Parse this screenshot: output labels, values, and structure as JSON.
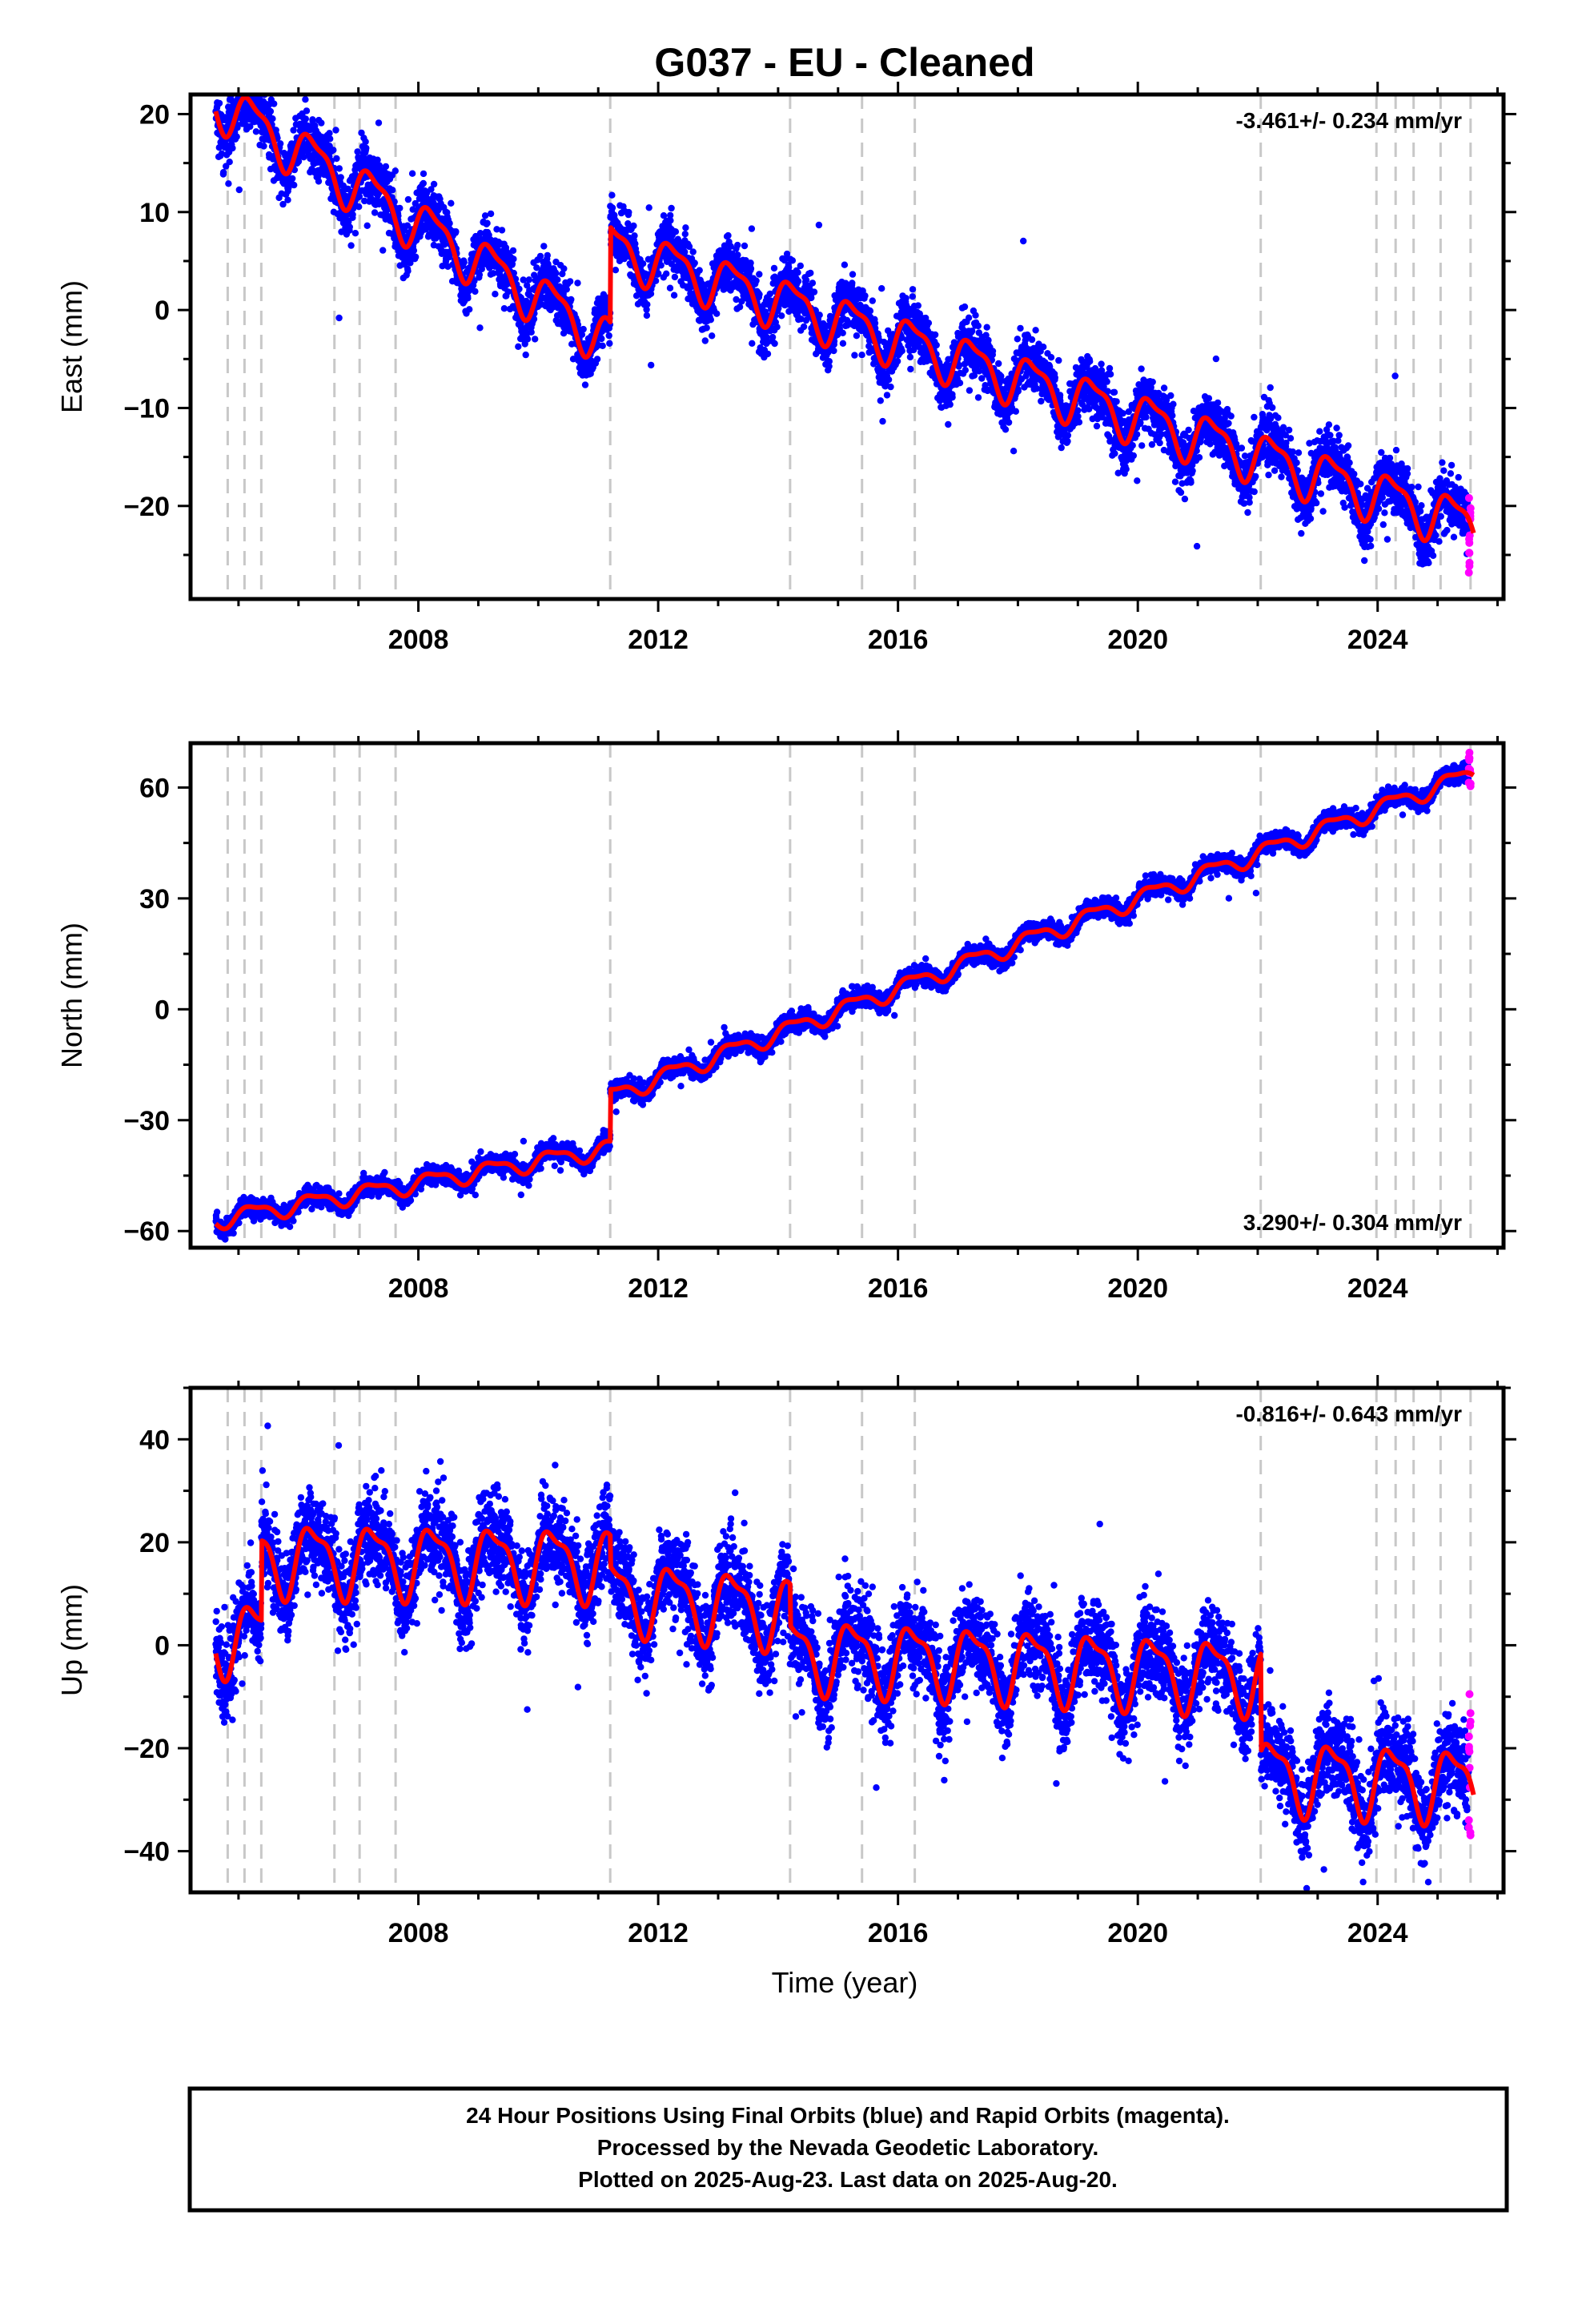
{
  "title": "G037  - EU - Cleaned",
  "xlabel": "Time (year)",
  "footer": {
    "line1": "24 Hour Positions Using Final Orbits (blue) and Rapid Orbits (magenta).",
    "line2": "Processed by the Nevada Geodetic Laboratory.",
    "line3": "Plotted on 2025-Aug-23. Last data on 2025-Aug-20."
  },
  "colors": {
    "final_orbit": "#0000ff",
    "rapid_orbit": "#ff00ff",
    "model": "#ff0000",
    "event_line": "#c8c8c8"
  },
  "chart_data": [
    {
      "type": "scatter",
      "name": "east",
      "ylabel": "East (mm)",
      "rate": "-3.461+/- 0.234 mm/yr",
      "xlim": [
        2004.2,
        2026.1
      ],
      "ylim": [
        -29.5,
        22
      ],
      "xticks": [
        2008,
        2012,
        2016,
        2020,
        2024
      ],
      "yticks": [
        -20,
        -10,
        0,
        10,
        20
      ],
      "event_lines": [
        2004.82,
        2005.1,
        2005.38,
        2006.6,
        2007.02,
        2007.62,
        2011.2,
        2014.2,
        2015.4,
        2016.28,
        2022.05,
        2023.98,
        2024.3,
        2024.6,
        2025.05,
        2025.55
      ],
      "trend_segments": [
        {
          "from": 2004.6,
          "to": 2011.2,
          "y0": 21.5,
          "y1": -3.2
        },
        {
          "from": 2011.2,
          "to": 2025.6,
          "y0": 6.5,
          "y1": -22.0
        }
      ],
      "seasonal_amplitude": 2.4,
      "noise": 1.4,
      "rapid_orbit": {
        "from": 2025.52,
        "to": 2025.62,
        "y_range": [
          -27,
          -19
        ]
      }
    },
    {
      "type": "scatter",
      "name": "north",
      "ylabel": "North (mm)",
      "rate": "3.290+/- 0.304 mm/yr",
      "xlim": [
        2004.2,
        2026.1
      ],
      "ylim": [
        -64.5,
        72
      ],
      "xticks": [
        2008,
        2012,
        2016,
        2020,
        2024
      ],
      "yticks": [
        -60,
        -30,
        0,
        30,
        60
      ],
      "event_lines": [
        2004.82,
        2005.1,
        2005.38,
        2006.6,
        2007.02,
        2007.62,
        2011.2,
        2014.2,
        2015.4,
        2016.28,
        2022.05,
        2023.98,
        2024.3,
        2024.6,
        2025.05,
        2025.55
      ],
      "trend_segments": [
        {
          "from": 2004.6,
          "to": 2011.2,
          "y0": -57.0,
          "y1": -37.5
        },
        {
          "from": 2011.2,
          "to": 2025.6,
          "y0": -23.5,
          "y1": 64.0
        }
      ],
      "seasonal_amplitude": 2.2,
      "noise": 1.2,
      "rapid_orbit": {
        "from": 2025.52,
        "to": 2025.62,
        "y_range": [
          60,
          70
        ]
      }
    },
    {
      "type": "scatter",
      "name": "up",
      "ylabel": "Up (mm)",
      "rate": "-0.816+/- 0.643 mm/yr",
      "xlim": [
        2004.2,
        2026.1
      ],
      "ylim": [
        -48,
        50
      ],
      "xticks": [
        2008,
        2012,
        2016,
        2020,
        2024
      ],
      "yticks": [
        -40,
        -20,
        0,
        20,
        40
      ],
      "event_lines": [
        2004.82,
        2005.1,
        2005.38,
        2006.6,
        2007.02,
        2007.62,
        2011.2,
        2014.2,
        2015.4,
        2016.28,
        2022.05,
        2023.98,
        2024.3,
        2024.6,
        2025.05,
        2025.55
      ],
      "trend_segments": [
        {
          "from": 2004.6,
          "to": 2005.38,
          "y0": 1.5,
          "y1": 1.5
        },
        {
          "from": 2005.38,
          "to": 2011.2,
          "y0": 17.0,
          "y1": 16.0
        },
        {
          "from": 2011.2,
          "to": 2014.2,
          "y0": 10.0,
          "y1": 6.5
        },
        {
          "from": 2014.2,
          "to": 2022.05,
          "y0": -1.5,
          "y1": -6.0
        },
        {
          "from": 2022.05,
          "to": 2025.6,
          "y0": -25.0,
          "y1": -27.0
        }
      ],
      "seasonal_amplitude": 6.5,
      "noise": 4.2,
      "rapid_orbit": {
        "from": 2025.52,
        "to": 2025.62,
        "y_range": [
          -38,
          -9
        ]
      }
    }
  ]
}
